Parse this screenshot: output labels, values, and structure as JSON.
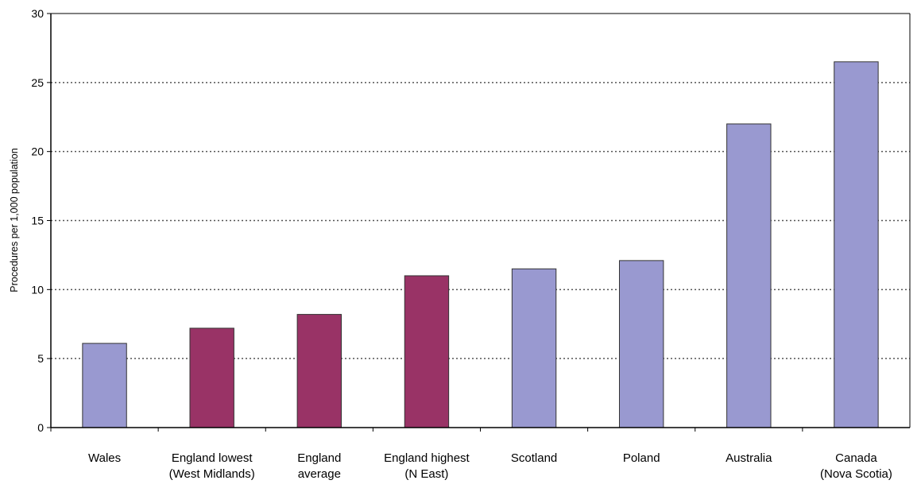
{
  "chart_data": {
    "type": "bar",
    "title": "",
    "xlabel": "",
    "ylabel": "Procedures per 1,000 population",
    "ylim": [
      0,
      30
    ],
    "yticks": [
      0,
      5,
      10,
      15,
      20,
      25,
      30
    ],
    "grid": true,
    "legend": "none",
    "categories": [
      [
        "Wales"
      ],
      [
        "England lowest",
        "(West Midlands)"
      ],
      [
        "England",
        "average"
      ],
      [
        "England highest",
        "(N East)"
      ],
      [
        "Scotland"
      ],
      [
        "Poland"
      ],
      [
        "Australia"
      ],
      [
        "Canada",
        "(Nova Scotia)"
      ]
    ],
    "values": [
      6.1,
      7.2,
      8.2,
      11.0,
      11.5,
      12.1,
      22.0,
      26.5
    ],
    "bar_colors": [
      "#9999d0",
      "#993366",
      "#993366",
      "#993366",
      "#9999d0",
      "#9999d0",
      "#9999d0",
      "#9999d0"
    ],
    "colors": {
      "series_other": "#9999d0",
      "series_england": "#993366",
      "grid": "#555555",
      "axis": "#000000"
    }
  }
}
